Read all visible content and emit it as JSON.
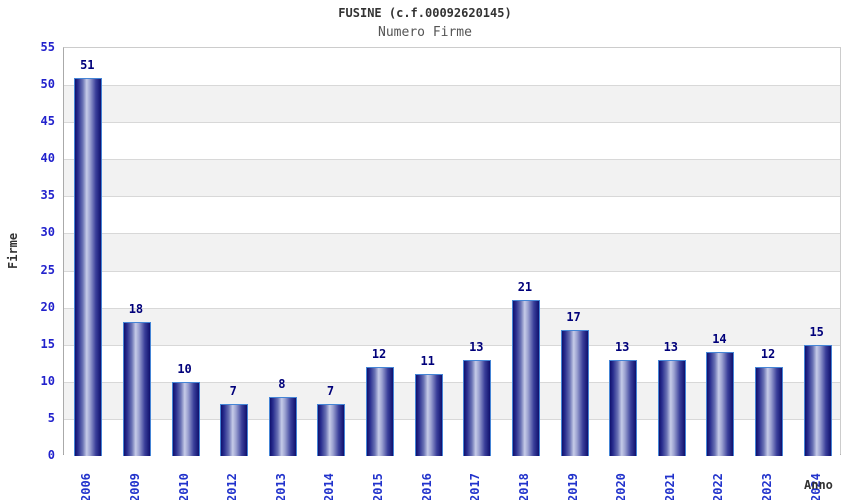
{
  "chart_data": {
    "type": "bar",
    "title": "FUSINE (c.f.00092620145)",
    "subtitle": "Numero Firme",
    "xlabel": "Anno",
    "ylabel": "Firme",
    "categories": [
      "2006",
      "2009",
      "2010",
      "2012",
      "2013",
      "2014",
      "2015",
      "2016",
      "2017",
      "2018",
      "2019",
      "2020",
      "2021",
      "2022",
      "2023",
      "2024"
    ],
    "values": [
      51,
      18,
      10,
      7,
      8,
      7,
      12,
      11,
      13,
      21,
      17,
      13,
      13,
      14,
      12,
      15
    ],
    "ylim": [
      0,
      55
    ],
    "ytick_step": 5,
    "grid": true,
    "legend": "none",
    "colors": {
      "bar_dark": "#10106e",
      "bar_highlight": "#c6cbe8",
      "bar_border": "#4585d6",
      "value_label": "#00007a",
      "axis_tick_label": "#2222cc",
      "band_alt": "#f2f2f2",
      "band_main": "#ffffff",
      "grid_line": "#d8d8d8",
      "title_color": "#333333",
      "subtitle_color": "#555555"
    }
  }
}
